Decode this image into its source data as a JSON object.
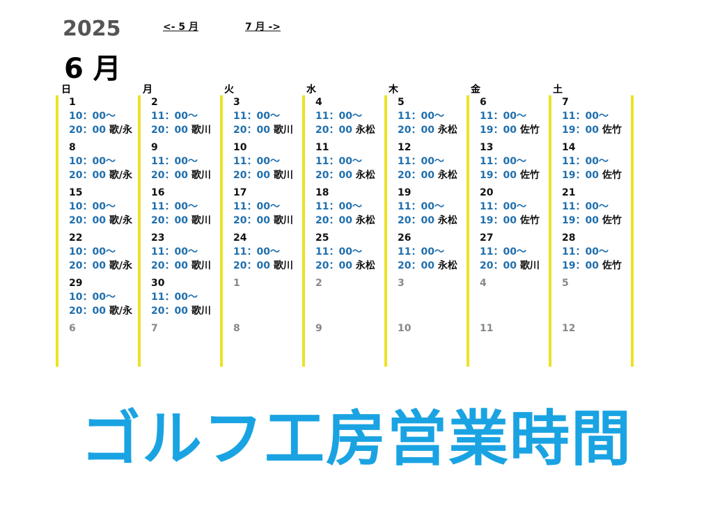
{
  "header": {
    "year": "2025",
    "month": "6 月",
    "prev_link": "<- 5 月",
    "next_link": "7 月 ->"
  },
  "weekdays": [
    "日",
    "月",
    "火",
    "水",
    "木",
    "金",
    "土"
  ],
  "colors": {
    "accent_line": "#ece224",
    "time_text": "#1f6fae",
    "banner": "#1aa3e2",
    "other_month_day": "#888888"
  },
  "weeks": [
    [
      {
        "day": "1",
        "other": false,
        "open": "10：00～",
        "close": "20：00",
        "staff": "歌/永"
      },
      {
        "day": "2",
        "other": false,
        "open": "11：00～",
        "close": "20：00",
        "staff": "歌川"
      },
      {
        "day": "3",
        "other": false,
        "open": "11：00～",
        "close": "20：00",
        "staff": "歌川"
      },
      {
        "day": "4",
        "other": false,
        "open": "11：00～",
        "close": "20：00",
        "staff": "永松"
      },
      {
        "day": "5",
        "other": false,
        "open": "11：00～",
        "close": "20：00",
        "staff": "永松"
      },
      {
        "day": "6",
        "other": false,
        "open": "11：00～",
        "close": "19：00",
        "staff": "佐竹"
      },
      {
        "day": "7",
        "other": false,
        "open": "11：00～",
        "close": "19：00",
        "staff": "佐竹"
      }
    ],
    [
      {
        "day": "8",
        "other": false,
        "open": "10：00～",
        "close": "20：00",
        "staff": "歌/永"
      },
      {
        "day": "9",
        "other": false,
        "open": "11：00～",
        "close": "20：00",
        "staff": "歌川"
      },
      {
        "day": "10",
        "other": false,
        "open": "11：00～",
        "close": "20：00",
        "staff": "歌川"
      },
      {
        "day": "11",
        "other": false,
        "open": "11：00～",
        "close": "20：00",
        "staff": "永松"
      },
      {
        "day": "12",
        "other": false,
        "open": "11：00～",
        "close": "20：00",
        "staff": "永松"
      },
      {
        "day": "13",
        "other": false,
        "open": "11：00～",
        "close": "19：00",
        "staff": "佐竹"
      },
      {
        "day": "14",
        "other": false,
        "open": "11：00～",
        "close": "19：00",
        "staff": "佐竹"
      }
    ],
    [
      {
        "day": "15",
        "other": false,
        "open": "10：00～",
        "close": "20：00",
        "staff": "歌/永"
      },
      {
        "day": "16",
        "other": false,
        "open": "11：00～",
        "close": "20：00",
        "staff": "歌川"
      },
      {
        "day": "17",
        "other": false,
        "open": "11：00～",
        "close": "20：00",
        "staff": "歌川"
      },
      {
        "day": "18",
        "other": false,
        "open": "11：00～",
        "close": "20：00",
        "staff": "永松"
      },
      {
        "day": "19",
        "other": false,
        "open": "11：00～",
        "close": "20：00",
        "staff": "永松"
      },
      {
        "day": "20",
        "other": false,
        "open": "11：00～",
        "close": "19：00",
        "staff": "佐竹"
      },
      {
        "day": "21",
        "other": false,
        "open": "11：00～",
        "close": "19：00",
        "staff": "佐竹"
      }
    ],
    [
      {
        "day": "22",
        "other": false,
        "open": "10：00～",
        "close": "20：00",
        "staff": "歌/永"
      },
      {
        "day": "23",
        "other": false,
        "open": "11：00～",
        "close": "20：00",
        "staff": "歌川"
      },
      {
        "day": "24",
        "other": false,
        "open": "11：00～",
        "close": "20：00",
        "staff": "歌川"
      },
      {
        "day": "25",
        "other": false,
        "open": "11：00～",
        "close": "20：00",
        "staff": "永松"
      },
      {
        "day": "26",
        "other": false,
        "open": "11：00～",
        "close": "20：00",
        "staff": "永松"
      },
      {
        "day": "27",
        "other": false,
        "open": "11：00～",
        "close": "20：00",
        "staff": "歌川"
      },
      {
        "day": "28",
        "other": false,
        "open": "11：00～",
        "close": "19：00",
        "staff": "佐竹"
      }
    ],
    [
      {
        "day": "29",
        "other": false,
        "open": "10：00～",
        "close": "20：00",
        "staff": "歌/永"
      },
      {
        "day": "30",
        "other": false,
        "open": "11：00～",
        "close": "20：00",
        "staff": "歌川"
      },
      {
        "day": "1",
        "other": true
      },
      {
        "day": "2",
        "other": true
      },
      {
        "day": "3",
        "other": true
      },
      {
        "day": "4",
        "other": true
      },
      {
        "day": "5",
        "other": true
      }
    ],
    [
      {
        "day": "6",
        "other": true
      },
      {
        "day": "7",
        "other": true
      },
      {
        "day": "8",
        "other": true
      },
      {
        "day": "9",
        "other": true
      },
      {
        "day": "10",
        "other": true
      },
      {
        "day": "11",
        "other": true
      },
      {
        "day": "12",
        "other": true
      }
    ]
  ],
  "banner": "ゴルフ工房営業時間"
}
